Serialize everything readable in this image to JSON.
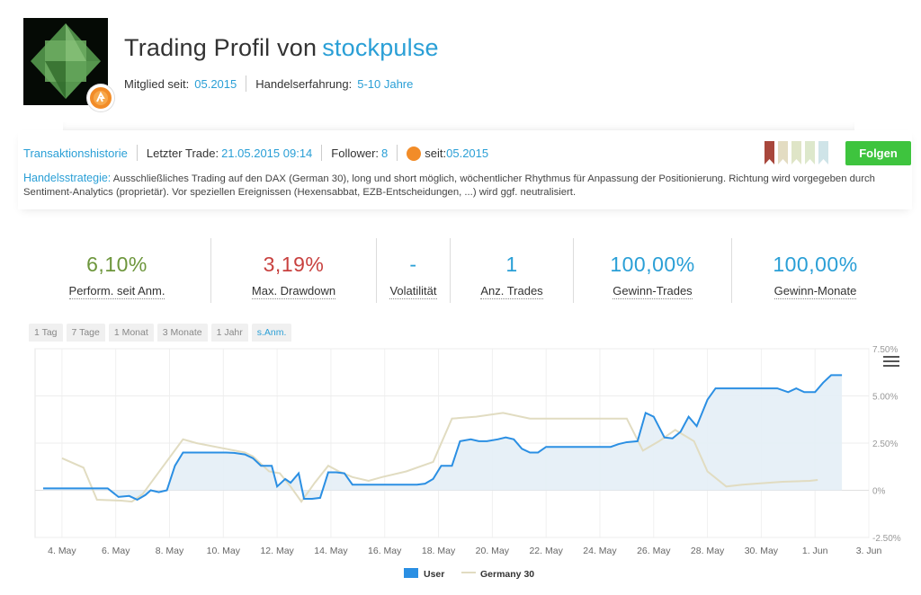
{
  "header": {
    "title_prefix": "Trading Profil von",
    "username": "stockpulse",
    "member_label": "Mitglied seit:",
    "member_value": "05.2015",
    "experience_label": "Handelserfahrung:",
    "experience_value": "5-10 Jahre"
  },
  "infobar": {
    "history_link": "Transaktionshistorie",
    "last_trade_label": "Letzter Trade:",
    "last_trade_value": "21.05.2015 09:14",
    "follower_label": "Follower:",
    "follower_value": "8",
    "since_label": "seit:",
    "since_value": "05.2015",
    "follow_button": "Folgen",
    "strategy_label": "Handelsstrategie:",
    "strategy_text": "Ausschließliches Trading auf den DAX (German 30), long und short möglich, wöchentlicher Rhythmus für Anpassung der Positionierung. Richtung wird vorgegeben durch Sentiment-Analytics (proprietär). Vor speziellen Ereignissen (Hexensabbat, EZB-Entscheidungen, ...) wird ggf. neutralisiert.",
    "flag_colors": [
      "#a8473c",
      "#e3dcc2",
      "#dfe5c7",
      "#dde8cc",
      "#cfe4e8"
    ]
  },
  "stats": [
    {
      "value": "6,10%",
      "label": "Perform. seit Anm.",
      "color": "#6d963c"
    },
    {
      "value": "3,19%",
      "label": "Max. Drawdown",
      "color": "#c8413f"
    },
    {
      "value": "-",
      "label": "Volatilität",
      "color": "#2a9fd6"
    },
    {
      "value": "1",
      "label": "Anz. Trades",
      "color": "#2a9fd6"
    },
    {
      "value": "100,00%",
      "label": "Gewinn-Trades",
      "color": "#2a9fd6"
    },
    {
      "value": "100,00%",
      "label": "Gewinn-Monate",
      "color": "#2a9fd6"
    }
  ],
  "tabs": [
    "1 Tag",
    "7 Tage",
    "1 Monat",
    "3 Monate",
    "1 Jahr",
    "s.Anm."
  ],
  "active_tab": "s.Anm.",
  "chart_data": {
    "type": "line",
    "x_tick_labels": [
      "4. May",
      "6. May",
      "8. May",
      "10. May",
      "12. May",
      "14. May",
      "16. May",
      "18. May",
      "20. May",
      "22. May",
      "24. May",
      "26. May",
      "28. May",
      "30. May",
      "1. Jun",
      "3. Jun"
    ],
    "y_tick_labels": [
      "7.50%",
      "5.00%",
      "2.50%",
      "0%",
      "-2.50%"
    ],
    "ylim": [
      -2.5,
      7.5
    ],
    "xlim": [
      3,
      34
    ],
    "y_axis_position": "right",
    "grid": true,
    "legend": "bottom-center",
    "series": [
      {
        "name": "User",
        "color": "#2b8fe3",
        "fill": "#e4eef6",
        "x": [
          3.3,
          5.7,
          6.1,
          6.5,
          6.8,
          7.1,
          7.3,
          7.6,
          7.9,
          8.2,
          8.5,
          8.8,
          9.1,
          9.4,
          9.7,
          10.1,
          10.4,
          10.8,
          11.1,
          11.4,
          11.8,
          12.0,
          12.3,
          12.5,
          12.8,
          13.0,
          13.3,
          13.6,
          13.9,
          14.2,
          14.5,
          14.8,
          15.1,
          15.3,
          15.6,
          16.0,
          16.4,
          16.8,
          17.2,
          17.5,
          17.8,
          18.1,
          18.5,
          18.8,
          19.2,
          19.5,
          19.8,
          20.2,
          20.5,
          20.8,
          21.1,
          21.4,
          21.7,
          22.0,
          22.3,
          22.6,
          23.0,
          23.4,
          23.8,
          24.1,
          24.4,
          24.7,
          25.0,
          25.4,
          25.7,
          26.0,
          26.4,
          26.7,
          27.0,
          27.3,
          27.6,
          28.0,
          28.3,
          28.6,
          28.9,
          29.2,
          29.6,
          30.0,
          30.3,
          30.6,
          31.0,
          31.3,
          31.6,
          32.0,
          32.3,
          32.6,
          33.0
        ],
        "y": [
          0.1,
          0.1,
          -0.35,
          -0.3,
          -0.5,
          -0.25,
          0.0,
          -0.1,
          0.0,
          1.3,
          2.0,
          2.0,
          2.0,
          2.0,
          2.0,
          2.0,
          1.98,
          1.9,
          1.7,
          1.3,
          1.3,
          0.2,
          0.6,
          0.4,
          0.9,
          -0.45,
          -0.45,
          -0.4,
          0.95,
          0.95,
          0.9,
          0.3,
          0.3,
          0.3,
          0.3,
          0.3,
          0.3,
          0.3,
          0.3,
          0.35,
          0.6,
          1.3,
          1.3,
          2.6,
          2.7,
          2.6,
          2.6,
          2.7,
          2.8,
          2.7,
          2.2,
          2.0,
          2.0,
          2.3,
          2.3,
          2.3,
          2.3,
          2.3,
          2.3,
          2.3,
          2.3,
          2.45,
          2.55,
          2.6,
          4.1,
          3.9,
          2.8,
          2.75,
          3.1,
          3.9,
          3.4,
          4.8,
          5.4,
          5.4,
          5.4,
          5.4,
          5.4,
          5.4,
          5.4,
          5.4,
          5.2,
          5.4,
          5.2,
          5.2,
          5.7,
          6.1,
          6.1
        ]
      },
      {
        "name": "Germany 30",
        "color": "#e1dcc1",
        "x": [
          4.0,
          4.8,
          5.3,
          6.2,
          6.6,
          7.0,
          8.5,
          9.0,
          10.8,
          11.1,
          11.4,
          11.7,
          12.1,
          12.5,
          12.9,
          13.4,
          13.9,
          14.3,
          14.8,
          15.4,
          15.9,
          16.8,
          17.8,
          18.5,
          19.4,
          20.4,
          21.4,
          22.2,
          23.2,
          24.2,
          25.0,
          25.6,
          26.2,
          26.8,
          27.5,
          28.0,
          28.7,
          29.3,
          29.8,
          30.8,
          31.8,
          32.1
        ],
        "y": [
          1.7,
          1.2,
          -0.5,
          -0.55,
          -0.6,
          -0.2,
          2.7,
          2.5,
          2.0,
          1.8,
          1.4,
          1.0,
          0.9,
          0.2,
          -0.6,
          0.4,
          1.3,
          1.0,
          0.7,
          0.5,
          0.7,
          1.0,
          1.5,
          3.8,
          3.9,
          4.1,
          3.8,
          3.8,
          3.8,
          3.8,
          3.8,
          2.1,
          2.6,
          3.2,
          2.6,
          1.0,
          0.2,
          0.3,
          0.35,
          0.45,
          0.5,
          0.55
        ]
      }
    ]
  }
}
